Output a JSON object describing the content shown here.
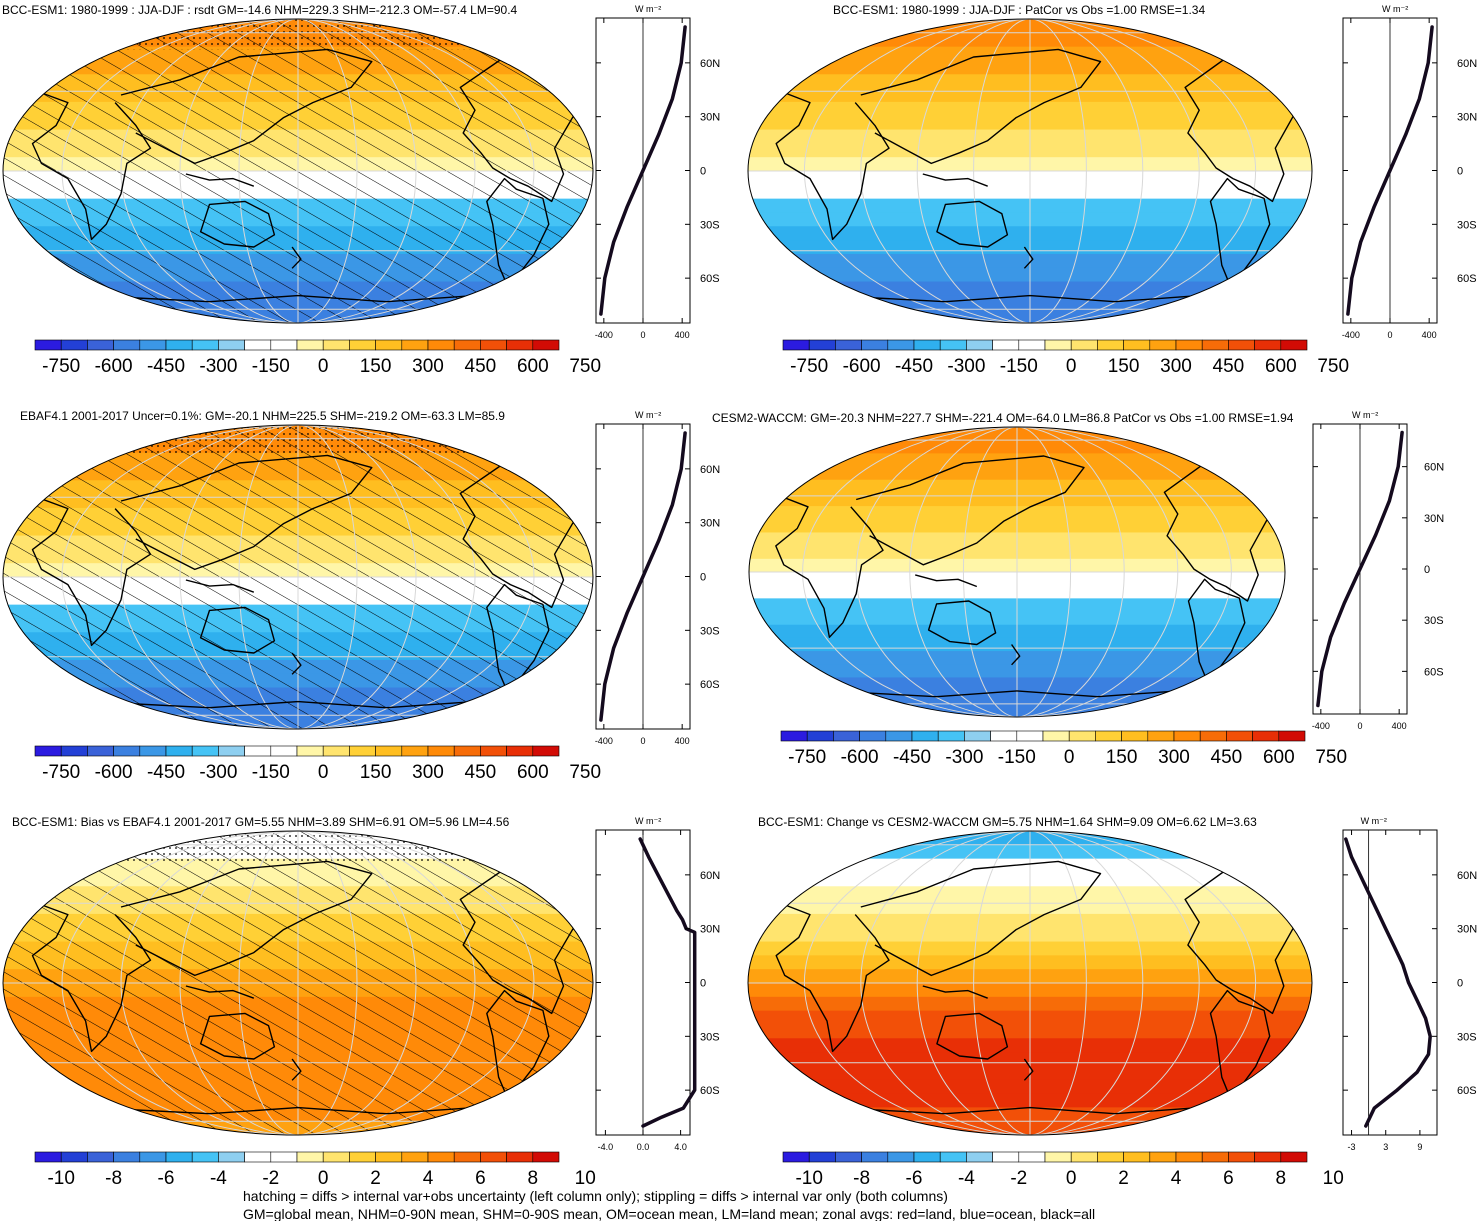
{
  "footnote": {
    "line1": "hatching = diffs > internal var+obs uncertainty (left column only); stippling = diffs > internal var only (both columns)",
    "line2": "GM=global mean, NHM=0-90N mean, SHM=0-90S mean, OM=ocean mean, LM=land mean; zonal avgs: red=land, blue=ocean, black=all"
  },
  "units_label": "W m⁻²",
  "colors": {
    "scale": [
      "#2b1be0",
      "#2340d6",
      "#3a62d8",
      "#3b80e0",
      "#3b97e6",
      "#2fb0ee",
      "#45c3f5",
      "#8ecff0",
      "#ffffff",
      "#ffffff",
      "#fff6a8",
      "#ffe46e",
      "#ffd036",
      "#ffbe20",
      "#ffa210",
      "#ff8a08",
      "#f76c08",
      "#f25008",
      "#e82f06",
      "#d20b05"
    ],
    "zonal_line": "#140a1e",
    "grid": "#d8d8d8",
    "land_outline": "#000000"
  },
  "colorbar_labels": {
    "rsdt": [
      "-750",
      "-600",
      "-450",
      "-300",
      "-150",
      "0",
      "150",
      "300",
      "450",
      "600",
      "750"
    ],
    "diff": [
      "-10",
      "-8",
      "-6",
      "-4",
      "-2",
      "0",
      "2",
      "4",
      "6",
      "8",
      "10"
    ]
  },
  "chart_data": [
    {
      "type": "heatmap",
      "panel": "top-left",
      "title": "BCC-ESM1: 1980-1999 : JJA-DJF : rsdt GM=-14.6 NHM=229.3 SHM=-212.3 OM=-57.4 LM=90.4",
      "colorbar": "rsdt",
      "hatching": true,
      "stippling": true,
      "zonal_profile": {
        "x_ticks": [
          "-400",
          "0",
          "400"
        ],
        "xlim": [
          -480,
          480
        ],
        "lat_ticks": [
          "60N",
          "30N",
          "0",
          "30S",
          "60S"
        ],
        "lat": [
          80,
          60,
          40,
          20,
          0,
          -20,
          -40,
          -60,
          -80
        ],
        "values": [
          430,
          390,
          300,
          160,
          0,
          -160,
          -300,
          -390,
          -430
        ]
      }
    },
    {
      "type": "heatmap",
      "panel": "top-right",
      "title": "BCC-ESM1: 1980-1999 : JJA-DJF : PatCor vs Obs =1.00 RMSE=1.34",
      "colorbar": "rsdt",
      "hatching": false,
      "stippling": false,
      "zonal_profile": {
        "x_ticks": [
          "-400",
          "0",
          "400"
        ],
        "xlim": [
          -480,
          480
        ],
        "lat_ticks": [
          "60N",
          "30N",
          "0",
          "30S",
          "60S"
        ],
        "lat": [
          80,
          60,
          40,
          20,
          0,
          -20,
          -40,
          -60,
          -80
        ],
        "values": [
          430,
          390,
          300,
          160,
          0,
          -160,
          -300,
          -390,
          -430
        ]
      }
    },
    {
      "type": "heatmap",
      "panel": "middle-left",
      "title": "EBAF4.1 2001-2017 Uncer=0.1%: GM=-20.1 NHM=225.5 SHM=-219.2 OM=-63.3 LM=85.9",
      "colorbar": "rsdt",
      "hatching": true,
      "stippling": true,
      "zonal_profile": {
        "x_ticks": [
          "-400",
          "0",
          "400"
        ],
        "xlim": [
          -480,
          480
        ],
        "lat_ticks": [
          "60N",
          "30N",
          "0",
          "30S",
          "60S"
        ],
        "lat": [
          80,
          60,
          40,
          20,
          0,
          -20,
          -40,
          -60,
          -80
        ],
        "values": [
          430,
          390,
          300,
          160,
          0,
          -160,
          -300,
          -390,
          -430
        ]
      }
    },
    {
      "type": "heatmap",
      "panel": "middle-right",
      "title": "CESM2-WACCM: GM=-20.3 NHM=227.7 SHM=-221.4 OM=-64.0 LM=86.8 PatCor vs Obs =1.00 RMSE=1.94",
      "colorbar": "rsdt",
      "hatching": false,
      "stippling": false,
      "zonal_profile": {
        "x_ticks": [
          "-400",
          "0",
          "400"
        ],
        "xlim": [
          -480,
          480
        ],
        "lat_ticks": [
          "60N",
          "30N",
          "0",
          "30S",
          "60S"
        ],
        "lat": [
          80,
          60,
          40,
          20,
          0,
          -20,
          -40,
          -60,
          -80
        ],
        "values": [
          430,
          390,
          300,
          160,
          0,
          -160,
          -300,
          -390,
          -430
        ]
      }
    },
    {
      "type": "heatmap",
      "panel": "bottom-left",
      "title": "BCC-ESM1: Bias vs EBAF4.1 2001-2017 GM=5.55 NHM=3.89 SHM=6.91 OM=5.96 LM=4.56",
      "colorbar": "diff",
      "hatching": true,
      "stippling": true,
      "zonal_profile": {
        "x_ticks": [
          "-4.0",
          "0.0",
          "4.0"
        ],
        "xlim": [
          -5,
          5
        ],
        "lat_ticks": [
          "60N",
          "30N",
          "0",
          "30S",
          "60S"
        ],
        "lat": [
          80,
          70,
          60,
          50,
          40,
          35,
          30,
          28,
          20,
          0,
          -20,
          -40,
          -60,
          -70,
          -75,
          -80
        ],
        "values": [
          -0.3,
          0.6,
          1.6,
          2.6,
          3.6,
          4.2,
          4.6,
          5.5,
          5.5,
          5.5,
          5.5,
          5.5,
          5.5,
          4.3,
          2.0,
          0.0
        ]
      }
    },
    {
      "type": "heatmap",
      "panel": "bottom-right",
      "title": "BCC-ESM1: Change vs CESM2-WACCM GM=5.75 NHM=1.64 SHM=9.09 OM=6.62 LM=3.63",
      "colorbar": "diff",
      "hatching": false,
      "stippling": false,
      "zonal_profile": {
        "x_ticks": [
          "-3",
          "3",
          "9"
        ],
        "xlim": [
          -4.5,
          12
        ],
        "lat_ticks": [
          "60N",
          "30N",
          "0",
          "30S",
          "60S"
        ],
        "lat": [
          80,
          70,
          60,
          50,
          40,
          30,
          20,
          10,
          0,
          -10,
          -20,
          -30,
          -40,
          -50,
          -60,
          -70,
          -80
        ],
        "values": [
          -4.0,
          -3.0,
          -1.5,
          0.0,
          1.5,
          3.0,
          4.5,
          6.0,
          7.0,
          8.5,
          10.0,
          10.8,
          10.5,
          8.5,
          5.0,
          1.0,
          -0.5
        ]
      }
    }
  ]
}
